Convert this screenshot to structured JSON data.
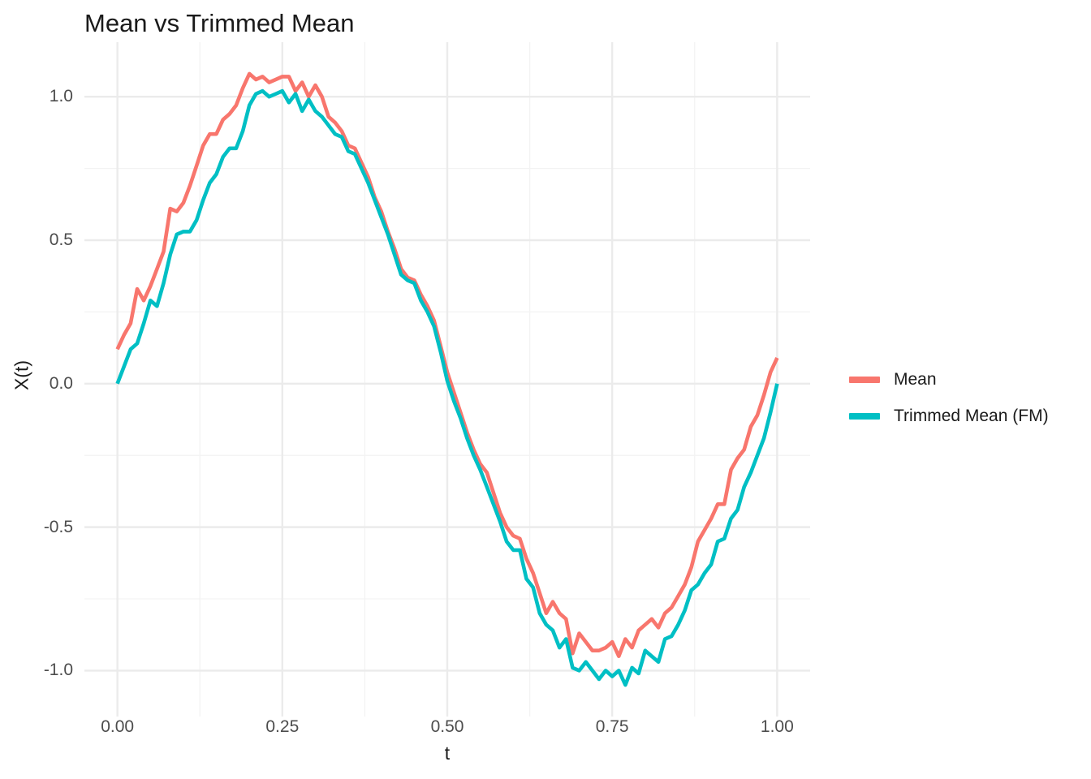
{
  "title": "Mean vs Trimmed Mean",
  "axes": {
    "x_label": "t",
    "y_label": "X(t)",
    "x_tick_labels": [
      "0.00",
      "0.25",
      "0.50",
      "0.75",
      "1.00"
    ],
    "y_tick_labels": [
      "-1.0",
      "-0.5",
      "0.0",
      "0.5",
      "1.0"
    ]
  },
  "legend": {
    "items": [
      {
        "label": "Mean",
        "color": "#F8766D"
      },
      {
        "label": "Trimmed Mean (FM)",
        "color": "#00BFC4"
      }
    ]
  },
  "colors": {
    "mean": "#F8766D",
    "trimmed_mean": "#00BFC4",
    "grid_major": "#EBEBEB",
    "grid_minor": "#F3F3F3",
    "tick_text": "#4d4d4d",
    "title_text": "#1a1a1a",
    "background": "#ffffff"
  },
  "chart_data": {
    "type": "line",
    "title": "Mean vs Trimmed Mean",
    "xlabel": "t",
    "ylabel": "X(t)",
    "xlim": [
      -0.05,
      1.05
    ],
    "ylim": [
      -1.16,
      1.19
    ],
    "x_ticks": [
      0,
      0.25,
      0.5,
      0.75,
      1.0
    ],
    "y_ticks": [
      -1.0,
      -0.5,
      0.0,
      0.5,
      1.0
    ],
    "x_minor_ticks": [
      0.125,
      0.375,
      0.625,
      0.875
    ],
    "y_minor_ticks": [
      -0.75,
      -0.25,
      0.25,
      0.75
    ],
    "grid": true,
    "legend_position": "right",
    "line_width": 4.6,
    "x": [
      0,
      0.01,
      0.02,
      0.03,
      0.04,
      0.05,
      0.06,
      0.07,
      0.08,
      0.09,
      0.1,
      0.11,
      0.12,
      0.13,
      0.14,
      0.15,
      0.16,
      0.17,
      0.18,
      0.19,
      0.2,
      0.21,
      0.22,
      0.23,
      0.24,
      0.25,
      0.26,
      0.27,
      0.28,
      0.29,
      0.3,
      0.31,
      0.32,
      0.33,
      0.34,
      0.35,
      0.36,
      0.37,
      0.38,
      0.39,
      0.4,
      0.41,
      0.42,
      0.43,
      0.44,
      0.45,
      0.46,
      0.47,
      0.48,
      0.49,
      0.5,
      0.51,
      0.52,
      0.53,
      0.54,
      0.55,
      0.56,
      0.57,
      0.58,
      0.59,
      0.6,
      0.61,
      0.62,
      0.63,
      0.64,
      0.65,
      0.66,
      0.67,
      0.68,
      0.69,
      0.7,
      0.71,
      0.72,
      0.73,
      0.74,
      0.75,
      0.76,
      0.77,
      0.78,
      0.79,
      0.8,
      0.81,
      0.82,
      0.83,
      0.84,
      0.85,
      0.86,
      0.87,
      0.88,
      0.89,
      0.9,
      0.91,
      0.92,
      0.93,
      0.94,
      0.95,
      0.96,
      0.97,
      0.98,
      0.99,
      1.0
    ],
    "series": [
      {
        "name": "Mean",
        "color": "#F8766D",
        "values": [
          0.12,
          0.17,
          0.21,
          0.33,
          0.29,
          0.34,
          0.4,
          0.46,
          0.61,
          0.6,
          0.63,
          0.69,
          0.76,
          0.83,
          0.87,
          0.87,
          0.92,
          0.94,
          0.97,
          1.03,
          1.08,
          1.06,
          1.07,
          1.05,
          1.06,
          1.07,
          1.07,
          1.02,
          1.05,
          1.0,
          1.04,
          1.0,
          0.93,
          0.91,
          0.88,
          0.83,
          0.82,
          0.77,
          0.72,
          0.65,
          0.6,
          0.53,
          0.47,
          0.4,
          0.37,
          0.36,
          0.31,
          0.27,
          0.22,
          0.13,
          0.04,
          -0.03,
          -0.1,
          -0.17,
          -0.23,
          -0.28,
          -0.31,
          -0.38,
          -0.45,
          -0.5,
          -0.53,
          -0.54,
          -0.61,
          -0.66,
          -0.73,
          -0.8,
          -0.76,
          -0.8,
          -0.82,
          -0.94,
          -0.87,
          -0.9,
          -0.93,
          -0.93,
          -0.92,
          -0.9,
          -0.95,
          -0.89,
          -0.92,
          -0.86,
          -0.84,
          -0.82,
          -0.85,
          -0.8,
          -0.78,
          -0.74,
          -0.7,
          -0.64,
          -0.55,
          -0.51,
          -0.47,
          -0.42,
          -0.42,
          -0.3,
          -0.26,
          -0.23,
          -0.15,
          -0.11,
          -0.04,
          0.04,
          0.09
        ]
      },
      {
        "name": "Trimmed Mean (FM)",
        "color": "#00BFC4",
        "values": [
          0.0,
          0.06,
          0.12,
          0.14,
          0.21,
          0.29,
          0.27,
          0.35,
          0.45,
          0.52,
          0.53,
          0.53,
          0.57,
          0.64,
          0.7,
          0.73,
          0.79,
          0.82,
          0.82,
          0.88,
          0.97,
          1.01,
          1.02,
          1.0,
          1.01,
          1.02,
          0.98,
          1.01,
          0.95,
          0.99,
          0.95,
          0.93,
          0.9,
          0.87,
          0.86,
          0.81,
          0.8,
          0.75,
          0.7,
          0.64,
          0.58,
          0.52,
          0.45,
          0.38,
          0.36,
          0.35,
          0.29,
          0.25,
          0.2,
          0.11,
          0.01,
          -0.06,
          -0.12,
          -0.19,
          -0.25,
          -0.3,
          -0.36,
          -0.42,
          -0.48,
          -0.55,
          -0.58,
          -0.58,
          -0.68,
          -0.71,
          -0.8,
          -0.84,
          -0.86,
          -0.92,
          -0.89,
          -0.99,
          -1.0,
          -0.97,
          -1.0,
          -1.03,
          -1.0,
          -1.02,
          -1.0,
          -1.05,
          -0.99,
          -1.01,
          -0.93,
          -0.95,
          -0.97,
          -0.89,
          -0.88,
          -0.84,
          -0.79,
          -0.72,
          -0.7,
          -0.66,
          -0.63,
          -0.55,
          -0.54,
          -0.47,
          -0.44,
          -0.36,
          -0.31,
          -0.25,
          -0.19,
          -0.1,
          0.0
        ]
      }
    ]
  }
}
